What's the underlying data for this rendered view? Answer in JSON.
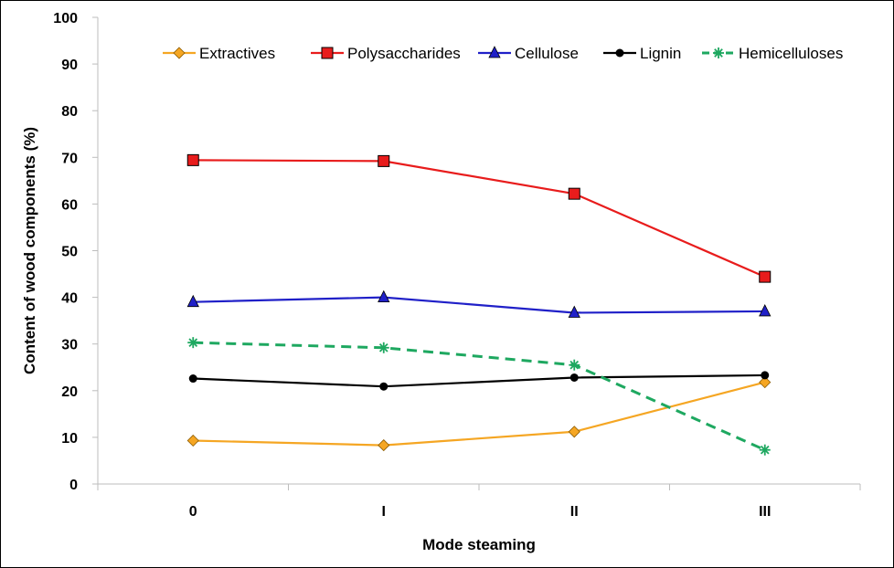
{
  "chart_data": {
    "type": "line",
    "categories": [
      "0",
      "I",
      "II",
      "III"
    ],
    "xlabel": "Mode steaming",
    "ylabel": "Content of wood components  (%)",
    "ylim": [
      0,
      100
    ],
    "yticks": [
      0,
      10,
      20,
      30,
      40,
      50,
      60,
      70,
      80,
      90,
      100
    ],
    "grid": false,
    "legend_position": "top-right",
    "series": [
      {
        "name": "Extractives",
        "values": [
          9.3,
          8.3,
          11.2,
          21.8
        ],
        "color": "#f5a623",
        "marker": "diamond",
        "dash": false
      },
      {
        "name": "Polysaccharides",
        "values": [
          69.4,
          69.2,
          62.2,
          44.4
        ],
        "color": "#e81c1c",
        "marker": "square",
        "dash": false
      },
      {
        "name": "Cellulose",
        "values": [
          39.0,
          40.0,
          36.7,
          37.0
        ],
        "color": "#2020c8",
        "marker": "triangle",
        "dash": false
      },
      {
        "name": "Lignin",
        "values": [
          22.6,
          20.9,
          22.8,
          23.3
        ],
        "color": "#000000",
        "marker": "circle",
        "dash": false
      },
      {
        "name": "Hemicelluloses",
        "values": [
          30.3,
          29.2,
          25.5,
          7.3
        ],
        "color": "#1ea860",
        "marker": "asterisk",
        "dash": true
      }
    ]
  }
}
